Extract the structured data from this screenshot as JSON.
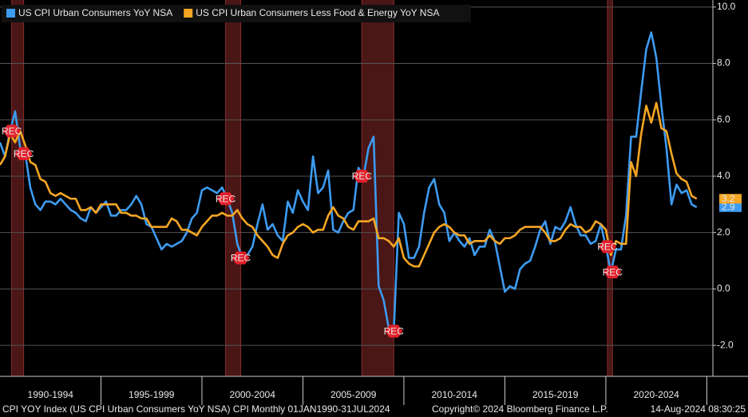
{
  "chart_data": {
    "type": "line",
    "x": [
      1990,
      1990.25,
      1990.5,
      1990.75,
      1991,
      1991.25,
      1991.5,
      1991.75,
      1992,
      1992.25,
      1992.5,
      1992.75,
      1993,
      1993.25,
      1993.5,
      1993.75,
      1994,
      1994.25,
      1994.5,
      1994.75,
      1995,
      1995.25,
      1995.5,
      1995.75,
      1996,
      1996.25,
      1996.5,
      1996.75,
      1997,
      1997.25,
      1997.5,
      1997.75,
      1998,
      1998.25,
      1998.5,
      1998.75,
      1999,
      1999.25,
      1999.5,
      1999.75,
      2000,
      2000.25,
      2000.5,
      2000.75,
      2001,
      2001.25,
      2001.5,
      2001.75,
      2002,
      2002.25,
      2002.5,
      2002.75,
      2003,
      2003.25,
      2003.5,
      2003.75,
      2004,
      2004.25,
      2004.5,
      2004.75,
      2005,
      2005.25,
      2005.5,
      2005.75,
      2006,
      2006.25,
      2006.5,
      2006.75,
      2007,
      2007.25,
      2007.5,
      2007.75,
      2008,
      2008.25,
      2008.5,
      2008.75,
      2009,
      2009.25,
      2009.5,
      2009.75,
      2010,
      2010.25,
      2010.5,
      2010.75,
      2011,
      2011.25,
      2011.5,
      2011.75,
      2012,
      2012.25,
      2012.5,
      2012.75,
      2013,
      2013.25,
      2013.5,
      2013.75,
      2014,
      2014.25,
      2014.5,
      2014.75,
      2015,
      2015.25,
      2015.5,
      2015.75,
      2016,
      2016.25,
      2016.5,
      2016.75,
      2017,
      2017.25,
      2017.5,
      2017.75,
      2018,
      2018.25,
      2018.5,
      2018.75,
      2019,
      2019.25,
      2019.5,
      2019.75,
      2020,
      2020.25,
      2020.5,
      2020.75,
      2021,
      2021.25,
      2021.5,
      2021.75,
      2022,
      2022.25,
      2022.5,
      2022.75,
      2023,
      2023.25,
      2023.5,
      2023.75,
      2024,
      2024.25,
      2024.5
    ],
    "series": [
      {
        "name": "US CPI Urban Consumers YoY NSA",
        "color": "#3d9bf0",
        "last_value_label": "2.9",
        "values": [
          5.2,
          4.7,
          5.6,
          6.3,
          5.0,
          4.8,
          3.6,
          3.0,
          2.8,
          3.1,
          3.1,
          3.0,
          3.2,
          3.0,
          2.8,
          2.7,
          2.5,
          2.4,
          2.9,
          2.7,
          2.9,
          3.1,
          2.6,
          2.6,
          2.8,
          2.8,
          3.0,
          3.3,
          3.0,
          2.3,
          2.2,
          1.8,
          1.4,
          1.6,
          1.5,
          1.6,
          1.7,
          2.0,
          2.5,
          2.7,
          3.5,
          3.6,
          3.5,
          3.4,
          3.6,
          3.2,
          2.7,
          1.6,
          1.1,
          1.2,
          1.5,
          2.3,
          3.0,
          2.1,
          2.3,
          1.9,
          1.7,
          3.1,
          2.7,
          3.5,
          3.1,
          2.8,
          4.7,
          3.4,
          3.6,
          4.2,
          2.1,
          2.0,
          2.4,
          2.7,
          2.8,
          4.3,
          4.0,
          5.0,
          5.4,
          0.1,
          -0.4,
          -1.4,
          -1.5,
          2.7,
          2.3,
          1.1,
          1.1,
          1.5,
          2.7,
          3.6,
          3.9,
          3.0,
          2.7,
          1.7,
          2.0,
          1.7,
          1.5,
          1.8,
          1.2,
          1.5,
          1.5,
          2.1,
          1.7,
          0.8,
          -0.1,
          0.1,
          0.0,
          0.7,
          0.9,
          1.0,
          1.5,
          2.1,
          2.4,
          1.6,
          2.2,
          2.1,
          2.4,
          2.9,
          2.3,
          1.9,
          1.9,
          1.6,
          1.7,
          2.3,
          1.5,
          0.6,
          1.4,
          1.4,
          2.6,
          5.4,
          5.4,
          7.0,
          8.5,
          9.1,
          8.2,
          6.5,
          5.0,
          3.0,
          3.7,
          3.4,
          3.5,
          3.0,
          2.9
        ]
      },
      {
        "name": "US CPI Urban Consumers Less Food & Energy YoY NSA",
        "color": "#f5a623",
        "last_value_label": "3.2",
        "values": [
          4.4,
          4.7,
          5.5,
          5.2,
          5.6,
          5.1,
          4.5,
          4.4,
          3.9,
          3.8,
          3.4,
          3.3,
          3.4,
          3.3,
          3.2,
          3.2,
          2.8,
          2.8,
          2.9,
          2.7,
          3.0,
          3.0,
          3.0,
          3.0,
          2.7,
          2.7,
          2.6,
          2.6,
          2.5,
          2.5,
          2.2,
          2.2,
          2.2,
          2.2,
          2.5,
          2.4,
          2.1,
          2.1,
          2.0,
          1.9,
          2.2,
          2.4,
          2.6,
          2.6,
          2.7,
          2.6,
          2.6,
          2.8,
          2.5,
          2.3,
          2.2,
          1.9,
          1.7,
          1.5,
          1.2,
          1.1,
          1.6,
          1.9,
          2.0,
          2.2,
          2.3,
          2.2,
          2.0,
          2.1,
          2.1,
          2.6,
          2.9,
          2.6,
          2.5,
          2.2,
          2.1,
          2.4,
          2.4,
          2.4,
          2.5,
          1.8,
          1.8,
          1.7,
          1.5,
          1.8,
          1.1,
          0.9,
          0.8,
          0.8,
          1.2,
          1.6,
          2.0,
          2.2,
          2.3,
          2.2,
          2.0,
          1.9,
          1.9,
          1.6,
          1.7,
          1.7,
          1.7,
          1.9,
          1.7,
          1.6,
          1.8,
          1.8,
          1.9,
          2.1,
          2.2,
          2.2,
          2.2,
          2.2,
          2.0,
          1.7,
          1.7,
          1.8,
          2.1,
          2.3,
          2.2,
          2.2,
          2.0,
          2.1,
          2.4,
          2.3,
          2.1,
          1.2,
          1.7,
          1.6,
          1.6,
          4.5,
          4.0,
          5.5,
          6.5,
          5.9,
          6.6,
          5.7,
          5.6,
          4.8,
          4.1,
          3.9,
          3.8,
          3.3,
          3.2
        ]
      }
    ],
    "xlim": [
      1990,
      2025.3
    ],
    "ylim": [
      -3.1,
      10.25
    ],
    "yticks": [
      {
        "value": 10,
        "label": "10.0"
      },
      {
        "value": 8,
        "label": "8.0"
      },
      {
        "value": 6,
        "label": "6.0"
      },
      {
        "value": 4,
        "label": "4.0"
      },
      {
        "value": 2,
        "label": "2.0"
      },
      {
        "value": 0,
        "label": "0.0"
      },
      {
        "value": -2,
        "label": "-2.0"
      }
    ],
    "grid": true,
    "x_bands": [
      {
        "start": 1990,
        "end": 1995,
        "label": "1990-1994"
      },
      {
        "start": 1995,
        "end": 2000,
        "label": "1995-1999"
      },
      {
        "start": 2000,
        "end": 2005,
        "label": "2000-2004"
      },
      {
        "start": 2005,
        "end": 2010,
        "label": "2005-2009"
      },
      {
        "start": 2010,
        "end": 2015,
        "label": "2010-2014"
      },
      {
        "start": 2015,
        "end": 2020,
        "label": "2015-2019"
      },
      {
        "start": 2020,
        "end": 2025,
        "label": "2020-2024"
      }
    ],
    "recessions": [
      {
        "start": 1990.58,
        "end": 1991.17,
        "label": "REC"
      },
      {
        "start": 2001.17,
        "end": 2001.92,
        "label": "REC"
      },
      {
        "start": 2007.92,
        "end": 2009.5,
        "label": "REC"
      },
      {
        "start": 2020.08,
        "end": 2020.33,
        "label": "REC"
      }
    ],
    "footer": [
      "CPI YOY Index (US CPI Urban Consumers YoY NSA) CPI  Monthly 01JAN1990-31JUL2024",
      "Copyright© 2024 Bloomberg Finance L.P.",
      "14-Aug-2024 08:30:25"
    ]
  }
}
